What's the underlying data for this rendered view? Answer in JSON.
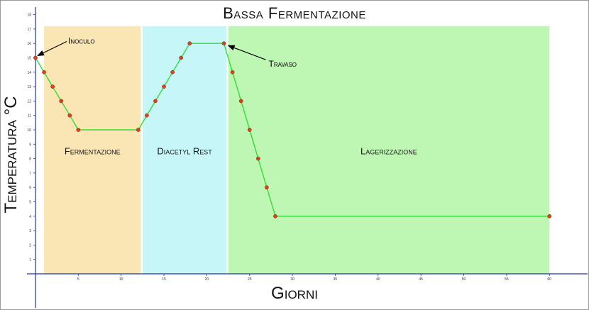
{
  "chart_data": {
    "type": "line",
    "title": "Bassa Fermentazione",
    "xlabel": "Giorni",
    "ylabel": "Temperatura °C",
    "xlim": [
      -1,
      63
    ],
    "ylim": [
      0,
      18
    ],
    "x_ticks": [
      5,
      10,
      15,
      20,
      25,
      30,
      35,
      40,
      45,
      50,
      55,
      60
    ],
    "y_ticks": [
      1,
      2,
      3,
      4,
      5,
      6,
      7,
      8,
      9,
      10,
      11,
      12,
      13,
      14,
      15,
      16,
      17,
      18
    ],
    "grid": false,
    "colors": {
      "line": "#33dd33",
      "marker": "#e0401a",
      "axis": "#2233aa",
      "fermentazione": "#f9e6b4",
      "diacetyl": "#c6f6f8",
      "lagerizzazione": "#bef6b4"
    },
    "regions": [
      {
        "label": "Fermentazione",
        "x_start": 1,
        "x_end": 12.3,
        "y_top": 17.2,
        "color_key": "fermentazione"
      },
      {
        "label": "Diacetyl Rest",
        "x_start": 12.5,
        "x_end": 22.3,
        "y_top": 17.2,
        "color_key": "diacetyl"
      },
      {
        "label": "Lagerizzazione",
        "x_start": 22.5,
        "x_end": 60,
        "y_top": 17.2,
        "color_key": "lagerizzazione"
      }
    ],
    "series": [
      {
        "points": [
          [
            0,
            15
          ],
          [
            1,
            14
          ],
          [
            2,
            13
          ],
          [
            3,
            12
          ],
          [
            4,
            11
          ],
          [
            5,
            10
          ],
          [
            12,
            10
          ],
          [
            13,
            11
          ],
          [
            14,
            12
          ],
          [
            15,
            13
          ],
          [
            16,
            14
          ],
          [
            17,
            15
          ],
          [
            18,
            16
          ],
          [
            22,
            16
          ],
          [
            23,
            14
          ],
          [
            24,
            12
          ],
          [
            25,
            10
          ],
          [
            26,
            8
          ],
          [
            27,
            6
          ],
          [
            28,
            4
          ],
          [
            60,
            4
          ]
        ]
      }
    ],
    "annotations": [
      {
        "text": "Inoculo",
        "x": 0,
        "y": 15
      },
      {
        "text": "Travaso",
        "x": 22,
        "y": 16
      }
    ]
  }
}
